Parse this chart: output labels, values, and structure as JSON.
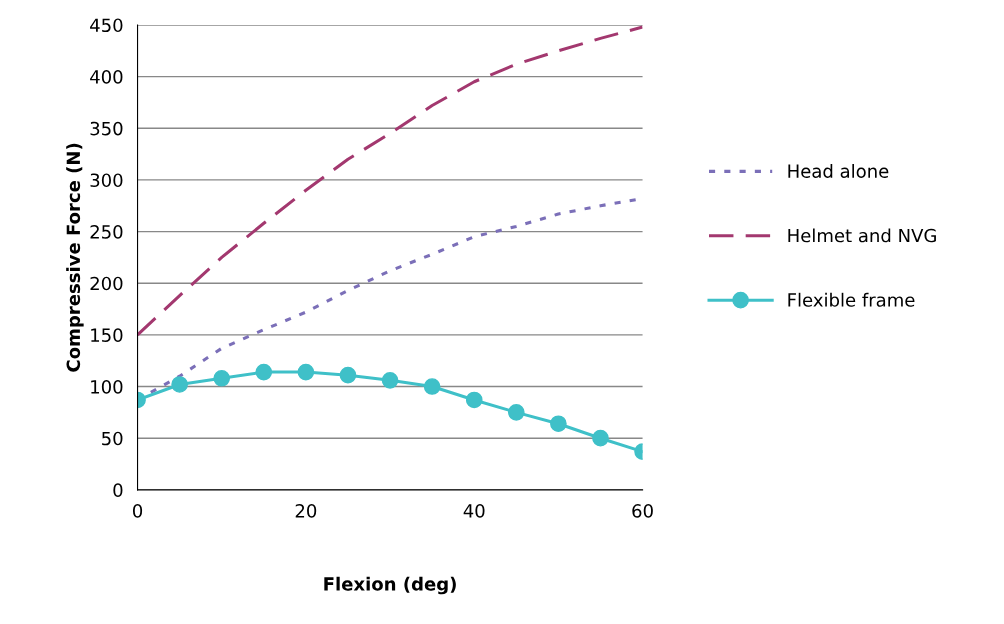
{
  "chart_data": {
    "type": "line",
    "xlabel": "Flexion (deg)",
    "ylabel": "Compressive Force (N)",
    "x": [
      0,
      5,
      10,
      15,
      20,
      25,
      30,
      35,
      40,
      45,
      50,
      55,
      60
    ],
    "series": [
      {
        "name": "Head alone",
        "color": "#7b6fb8",
        "line_style": "dotted",
        "marker": "none",
        "values": [
          87,
          110,
          137,
          155,
          172,
          193,
          212,
          228,
          245,
          255,
          267,
          275,
          282
        ]
      },
      {
        "name": "Helmet and NVG",
        "color": "#a3386f",
        "line_style": "dashed",
        "marker": "none",
        "values": [
          150,
          188,
          225,
          258,
          290,
          320,
          345,
          372,
          395,
          412,
          425,
          437,
          448
        ]
      },
      {
        "name": "Flexible frame",
        "color": "#3fc0c8",
        "line_style": "solid",
        "marker": "circle",
        "values": [
          87,
          102,
          108,
          114,
          114,
          111,
          106,
          100,
          87,
          75,
          64,
          50,
          37
        ]
      }
    ],
    "xlim": [
      0,
      60
    ],
    "xticks": [
      0,
      20,
      40,
      60
    ],
    "ylim": [
      0,
      450
    ],
    "yticks": [
      0,
      50,
      100,
      150,
      200,
      250,
      300,
      350,
      400,
      450
    ],
    "grid": "y",
    "legend": "right"
  }
}
